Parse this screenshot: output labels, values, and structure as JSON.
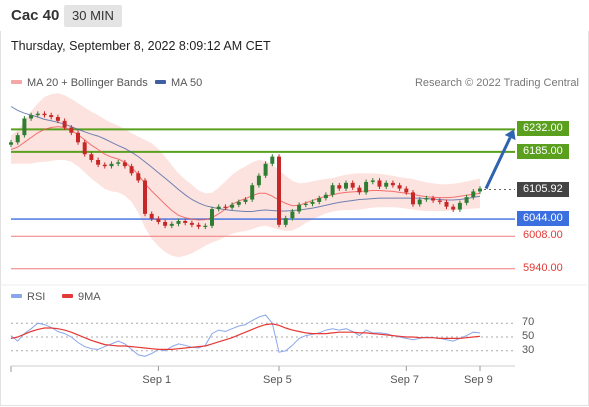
{
  "header": {
    "instrument": "Cac 40",
    "timeframe": "30 MIN",
    "datetime": "Thursday, September 8, 2022 8:09:12 AM CET"
  },
  "legend": {
    "ma20": "MA 20 + Bollinger Bands",
    "ma50": "MA 50",
    "credit": "Research © 2022 Trading Central",
    "rsi": "RSI",
    "rsi_ma": "9MA"
  },
  "colors": {
    "bullish": "#2e7d32",
    "bearish": "#c62828",
    "ma20": "#ef5350",
    "ma50": "#3f5fa0",
    "bands": "#fde0dc",
    "resistance": "#5aa01e",
    "pivot": "#3b6fe0",
    "support": "#ef7b7b",
    "rsi": "#8aa6ea",
    "rsi_ma": "#e53935",
    "arrow": "#2f63b0",
    "price_tag": "#444444"
  },
  "chart_data": [
    {
      "type": "candlestick",
      "title": "",
      "ylim": [
        5910,
        6300
      ],
      "x_ticks": [
        "Sep 1",
        "Sep 5",
        "Sep 7",
        "Sep 9"
      ],
      "levels": [
        {
          "label": "6232.00",
          "value": 6232,
          "kind": "resistance"
        },
        {
          "label": "6185.00",
          "value": 6185,
          "kind": "resistance"
        },
        {
          "label": "6044.00",
          "value": 6044,
          "kind": "pivot"
        },
        {
          "label": "6008.00",
          "value": 6008,
          "kind": "support"
        },
        {
          "label": "5940.00",
          "value": 5940,
          "kind": "support"
        }
      ],
      "last_price": {
        "label": "6105.92",
        "value": 6105.92
      },
      "close": [
        6205,
        6220,
        6255,
        6262,
        6265,
        6262,
        6258,
        6250,
        6236,
        6225,
        6205,
        6180,
        6168,
        6158,
        6155,
        6160,
        6163,
        6155,
        6140,
        6125,
        6055,
        6045,
        6038,
        6030,
        6034,
        6040,
        6036,
        6032,
        6028,
        6030,
        6065,
        6070,
        6068,
        6074,
        6080,
        6085,
        6115,
        6135,
        6160,
        6175,
        6032,
        6046,
        6060,
        6074,
        6076,
        6080,
        6088,
        6095,
        6115,
        6108,
        6120,
        6110,
        6100,
        6122,
        6125,
        6112,
        6120,
        6115,
        6108,
        6100,
        6075,
        6085,
        6088,
        6083,
        6080,
        6070,
        6064,
        6078,
        6090,
        6102,
        6108
      ],
      "ma20": [
        6190,
        6195,
        6205,
        6215,
        6225,
        6232,
        6236,
        6238,
        6236,
        6230,
        6221,
        6210,
        6199,
        6190,
        6180,
        6174,
        6170,
        6163,
        6152,
        6137,
        6118,
        6103,
        6089,
        6075,
        6062,
        6052,
        6047,
        6044,
        6042,
        6043,
        6047,
        6055,
        6065,
        6075,
        6082,
        6087,
        6093,
        6098,
        6098,
        6092,
        6084,
        6077,
        6072,
        6073,
        6078,
        6083,
        6088,
        6092,
        6095,
        6098,
        6100,
        6101,
        6102,
        6103,
        6104,
        6104,
        6103,
        6102,
        6100,
        6098,
        6096,
        6093,
        6091,
        6090,
        6089,
        6089,
        6090,
        6092,
        6094,
        6096,
        6098
      ],
      "ma50": [
        6280,
        6272,
        6266,
        6262,
        6258,
        6253,
        6250,
        6247,
        6243,
        6238,
        6232,
        6227,
        6222,
        6218,
        6212,
        6205,
        6198,
        6192,
        6184,
        6175,
        6164,
        6153,
        6141,
        6130,
        6118,
        6106,
        6095,
        6085,
        6078,
        6072,
        6069,
        6066,
        6064,
        6062,
        6061,
        6060,
        6060,
        6062,
        6063,
        6062,
        6061,
        6061,
        6062,
        6063,
        6065,
        6067,
        6070,
        6073,
        6076,
        6079,
        6081,
        6083,
        6085,
        6086,
        6087,
        6088,
        6088,
        6088,
        6088,
        6088,
        6088,
        6088,
        6087,
        6086,
        6085,
        6084,
        6084,
        6085,
        6087,
        6090,
        6092
      ],
      "band_halfwidth": [
        30,
        35,
        45,
        55,
        62,
        68,
        70,
        70,
        68,
        66,
        66,
        68,
        70,
        72,
        73,
        72,
        70,
        70,
        72,
        80,
        92,
        100,
        102,
        100,
        95,
        88,
        80,
        72,
        62,
        55,
        52,
        55,
        58,
        62,
        65,
        68,
        70,
        70,
        68,
        66,
        62,
        58,
        52,
        46,
        42,
        40,
        38,
        36,
        35,
        36,
        37,
        38,
        38,
        37,
        36,
        35,
        34,
        33,
        32,
        32,
        32,
        31,
        30,
        29,
        28,
        28,
        28,
        28,
        29,
        30,
        31
      ],
      "projection": {
        "from": 6108,
        "to": 6232
      }
    },
    {
      "type": "line",
      "title": "",
      "ylim": [
        5,
        95
      ],
      "hlines": [
        70,
        50,
        30
      ],
      "y_ticks": [
        "70",
        "50",
        "30"
      ],
      "series": [
        {
          "name": "RSI",
          "values": [
            52,
            44,
            55,
            62,
            70,
            68,
            64,
            58,
            55,
            50,
            42,
            36,
            33,
            32,
            36,
            40,
            44,
            40,
            32,
            24,
            22,
            26,
            32,
            30,
            36,
            40,
            38,
            35,
            34,
            38,
            55,
            60,
            58,
            62,
            66,
            68,
            74,
            79,
            82,
            70,
            28,
            30,
            38,
            48,
            52,
            54,
            56,
            60,
            62,
            60,
            62,
            58,
            52,
            60,
            56,
            56,
            55,
            52,
            50,
            48,
            46,
            48,
            50,
            49,
            48,
            46,
            44,
            48,
            52,
            57,
            56
          ]
        },
        {
          "name": "9MA",
          "values": [
            48,
            50,
            54,
            58,
            61,
            63,
            63,
            62,
            60,
            57,
            53,
            49,
            45,
            42,
            39,
            38,
            37,
            37,
            36,
            35,
            34,
            33,
            32,
            32,
            32,
            33,
            34,
            35,
            36,
            37,
            40,
            43,
            46,
            49,
            53,
            57,
            61,
            65,
            68,
            69,
            67,
            63,
            60,
            58,
            56,
            55,
            55,
            55,
            56,
            57,
            57,
            57,
            56,
            56,
            55,
            54,
            53,
            52,
            51,
            50,
            50,
            49,
            49,
            49,
            48,
            48,
            48,
            48,
            49,
            50,
            51
          ]
        }
      ]
    }
  ]
}
